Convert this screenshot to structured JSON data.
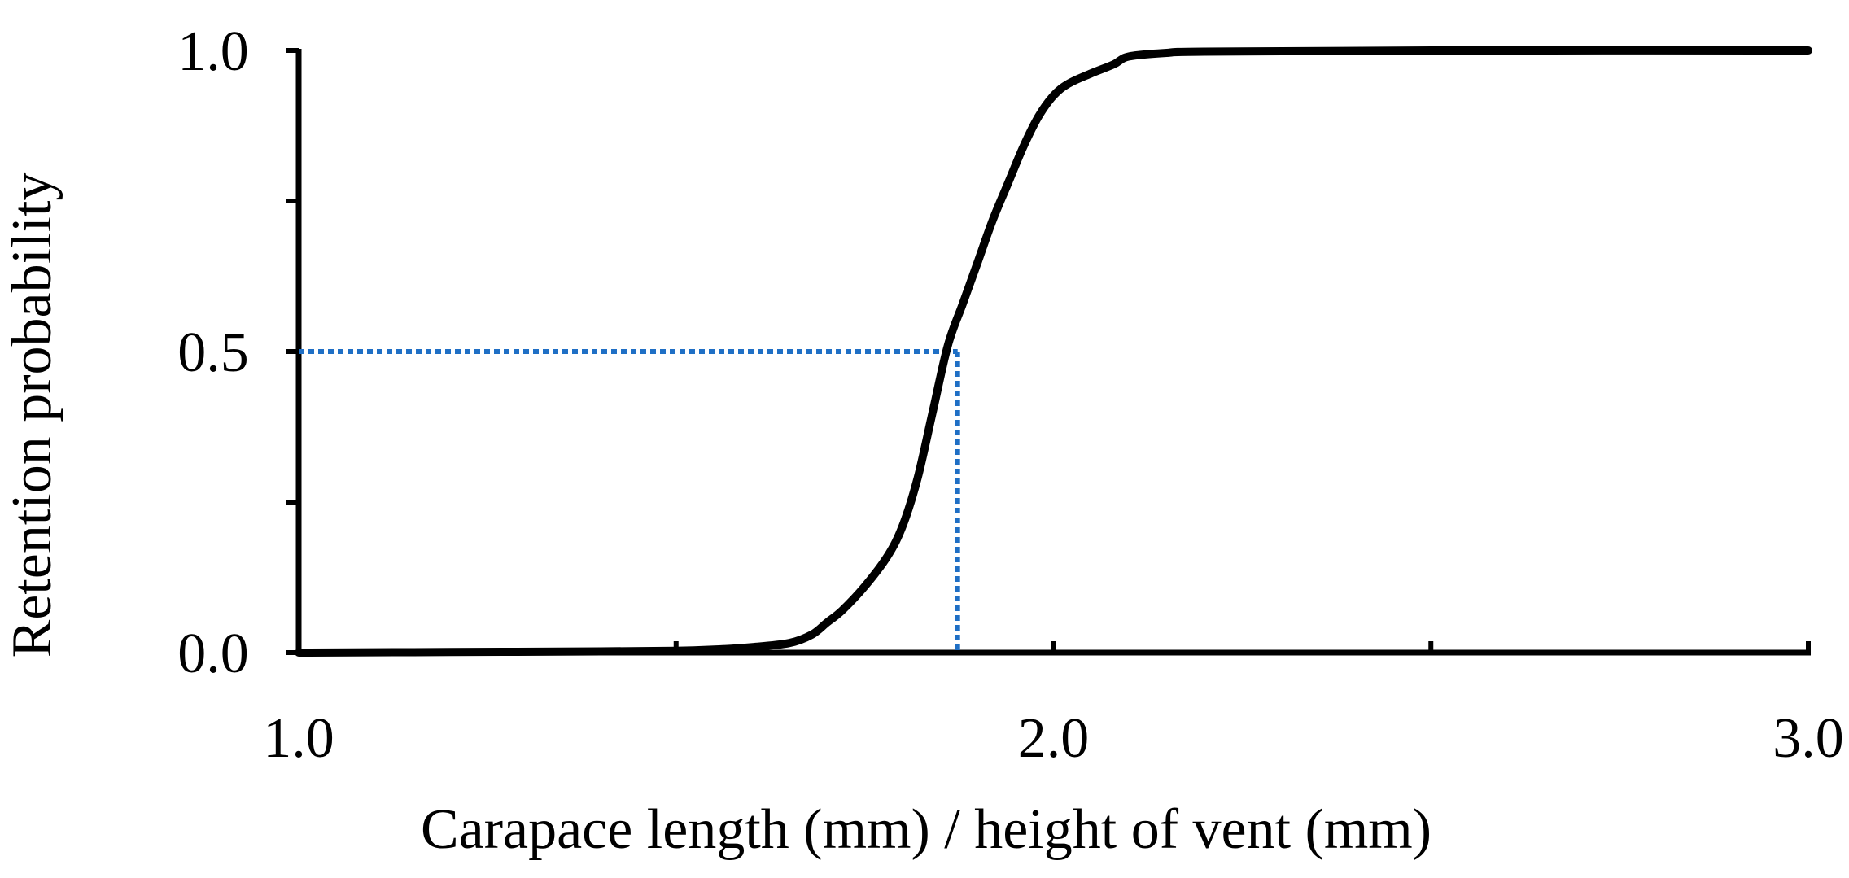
{
  "chart_data": {
    "type": "line",
    "title": "",
    "xlabel": "Carapace length (mm) /  height of vent (mm)",
    "ylabel": "Retention  probability",
    "xlim": [
      1.0,
      3.0
    ],
    "ylim": [
      0.0,
      1.0
    ],
    "x_tick_labels": [
      "1.0",
      "2.0",
      "3.0"
    ],
    "x_tick_values": [
      1.0,
      2.0,
      3.0
    ],
    "x_minor_ticks": [
      1.5,
      2.5
    ],
    "y_tick_labels": [
      "0.0",
      "0.5",
      "1.0"
    ],
    "y_tick_values": [
      0.0,
      0.5,
      1.0
    ],
    "y_minor_ticks": [
      0.25,
      0.75
    ],
    "grid": false,
    "series": [
      {
        "color": "#000000",
        "x": [
          1.0,
          1.2,
          1.4,
          1.5,
          1.55,
          1.6,
          1.65,
          1.68,
          1.7,
          1.72,
          1.75,
          1.78,
          1.8,
          1.82,
          1.84,
          1.86,
          1.88,
          1.9,
          1.92,
          1.94,
          1.96,
          1.98,
          2.0,
          2.02,
          2.05,
          2.08,
          2.1,
          2.15,
          2.2,
          2.5,
          3.0
        ],
        "y": [
          0.0,
          0.001,
          0.002,
          0.003,
          0.005,
          0.009,
          0.016,
          0.03,
          0.05,
          0.07,
          0.11,
          0.16,
          0.21,
          0.29,
          0.4,
          0.51,
          0.58,
          0.65,
          0.72,
          0.78,
          0.84,
          0.89,
          0.925,
          0.945,
          0.962,
          0.977,
          0.99,
          0.996,
          0.998,
          1.0,
          1.0
        ]
      }
    ],
    "annotations": {
      "color": "#1f6fc5",
      "x50": 1.873,
      "y50": 0.5
    }
  }
}
